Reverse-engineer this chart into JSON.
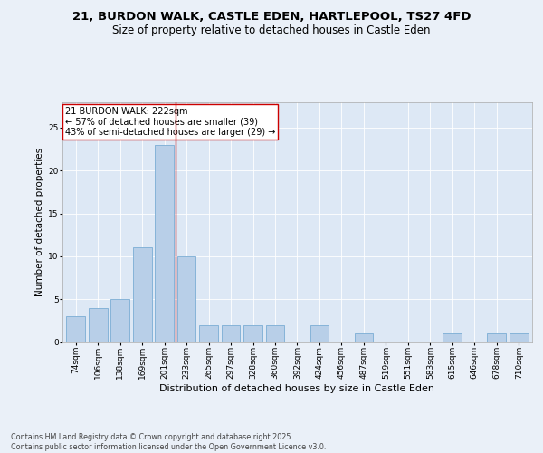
{
  "title1": "21, BURDON WALK, CASTLE EDEN, HARTLEPOOL, TS27 4FD",
  "title2": "Size of property relative to detached houses in Castle Eden",
  "xlabel": "Distribution of detached houses by size in Castle Eden",
  "ylabel": "Number of detached properties",
  "bar_labels": [
    "74sqm",
    "106sqm",
    "138sqm",
    "169sqm",
    "201sqm",
    "233sqm",
    "265sqm",
    "297sqm",
    "328sqm",
    "360sqm",
    "392sqm",
    "424sqm",
    "456sqm",
    "487sqm",
    "519sqm",
    "551sqm",
    "583sqm",
    "615sqm",
    "646sqm",
    "678sqm",
    "710sqm"
  ],
  "bar_values": [
    3,
    4,
    5,
    11,
    23,
    10,
    2,
    2,
    2,
    2,
    0,
    2,
    0,
    1,
    0,
    0,
    0,
    1,
    0,
    1,
    1
  ],
  "bar_color": "#b8cfe8",
  "bar_edge_color": "#7aadd4",
  "vline_x": 4.5,
  "vline_color": "#cc0000",
  "annotation_text": "21 BURDON WALK: 222sqm\n← 57% of detached houses are smaller (39)\n43% of semi-detached houses are larger (29) →",
  "annotation_box_color": "#ffffff",
  "annotation_box_edge": "#cc0000",
  "ylim": [
    0,
    28
  ],
  "yticks": [
    0,
    5,
    10,
    15,
    20,
    25
  ],
  "footer": "Contains HM Land Registry data © Crown copyright and database right 2025.\nContains public sector information licensed under the Open Government Licence v3.0.",
  "bg_color": "#dde8f5",
  "fig_color": "#eaf0f8",
  "title1_fontsize": 9.5,
  "title2_fontsize": 8.5,
  "xlabel_fontsize": 8,
  "ylabel_fontsize": 7.5,
  "tick_fontsize": 6.5,
  "footer_fontsize": 5.8,
  "annot_fontsize": 7
}
